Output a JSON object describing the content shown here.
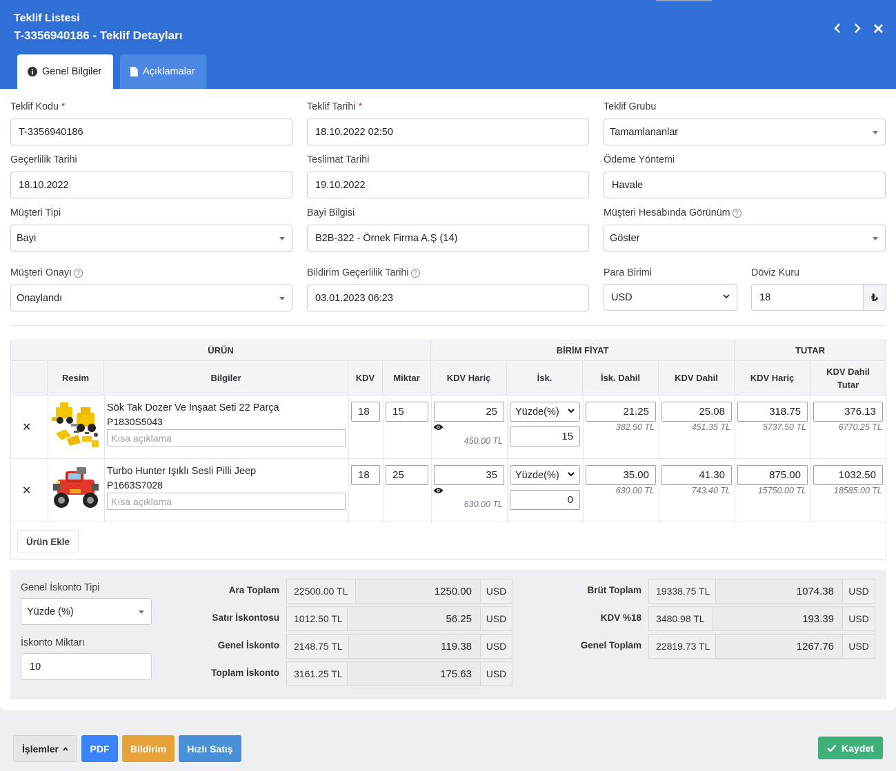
{
  "header": {
    "title_top": "Teklif Listesi",
    "title_main": "T-3356940186 - Teklif Detayları",
    "prev_icon": "chevron-left-icon",
    "next_icon": "chevron-right-icon",
    "close_icon": "close-icon"
  },
  "tabs": [
    {
      "label": "Genel Bilgiler",
      "icon": "info-circle-icon",
      "active": true
    },
    {
      "label": "Açıklamalar",
      "icon": "file-icon",
      "active": false
    }
  ],
  "form": {
    "teklif_kodu": {
      "label": "Teklif Kodu",
      "required": "*",
      "value": "T-3356940186"
    },
    "teklif_tarihi": {
      "label": "Teklif Tarihi",
      "required": "*",
      "value": "18.10.2022 02:50"
    },
    "teklif_grubu": {
      "label": "Teklif Grubu",
      "value": "Tamamlananlar"
    },
    "gecerlilik_tarihi": {
      "label": "Geçerlilik Tarihi",
      "value": "18.10.2022"
    },
    "teslimat_tarihi": {
      "label": "Teslimat Tarihi",
      "value": "19.10.2022"
    },
    "odeme_yontemi": {
      "label": "Ödeme Yöntemi",
      "value": "Havale"
    },
    "musteri_tipi": {
      "label": "Müşteri Tipi",
      "value": "Bayi"
    },
    "bayi_bilgisi": {
      "label": "Bayi Bilgisi",
      "value": "B2B-322 - Örnek Firma A.Ş (14)"
    },
    "musteri_hesabi_gorunum": {
      "label": "Müşteri Hesabında Görünüm",
      "value": "Göster"
    },
    "musteri_onayi": {
      "label": "Müşteri Onayı",
      "value": "Onaylandı"
    },
    "bildirim_gecerlilik": {
      "label": "Bildirim Geçerlilik Tarihi",
      "value": "03.01.2023 06:23"
    },
    "para_birimi": {
      "label": "Para Birimi",
      "value": "USD"
    },
    "doviz_kuru": {
      "label": "Döviz Kuru",
      "value": "18",
      "addon": "₺"
    },
    "help_glyph": "?"
  },
  "table": {
    "group_headers": {
      "urun": "ÜRÜN",
      "birim_fiyat": "BİRİM FİYAT",
      "tutar": "TUTAR"
    },
    "columns": {
      "resim": "Resim",
      "bilgiler": "Bilgiler",
      "kdv": "KDV",
      "miktar": "Miktar",
      "kdv_haric": "KDV Hariç",
      "isk": "İsk.",
      "isk_dahil": "İsk. Dahil",
      "kdv_dahil": "KDV Dahil",
      "tutar_kdv_haric": "KDV Hariç",
      "kdv_dahil_tutar_1": "KDV Dahil",
      "kdv_dahil_tutar_2": "Tutar"
    },
    "remove_glyph": "✕",
    "eye_glyph": "👁",
    "short_desc_placeholder": "Kısa açıklama",
    "rows": [
      {
        "name": "Sök Tak Dozer Ve İnşaat Seti 22 Parça",
        "code": "P1830S5043",
        "kdv": "18",
        "miktar": "15",
        "kdv_haric": "25",
        "kdv_haric_sub": "450.00 TL",
        "isk_type": "Yüzde(%)",
        "isk_value": "15",
        "isk_dahil": "21.25",
        "isk_dahil_sub": "382.50 TL",
        "kdv_dahil": "25.08",
        "kdv_dahil_sub": "451.35 TL",
        "tutar_kdv_haric": "318.75",
        "tutar_kdv_haric_sub": "5737.50 TL",
        "tutar_kdv_dahil": "376.13",
        "tutar_kdv_dahil_sub": "6770.25 TL"
      },
      {
        "name": "Turbo Hunter Işıklı Sesli Pilli Jeep",
        "code": "P1663S7028",
        "kdv": "18",
        "miktar": "25",
        "kdv_haric": "35",
        "kdv_haric_sub": "630.00 TL",
        "isk_type": "Yüzde(%)",
        "isk_value": "0",
        "isk_dahil": "35.00",
        "isk_dahil_sub": "630.00 TL",
        "kdv_dahil": "41.30",
        "kdv_dahil_sub": "743.40 TL",
        "tutar_kdv_haric": "875.00",
        "tutar_kdv_haric_sub": "15750.00 TL",
        "tutar_kdv_dahil": "1032.50",
        "tutar_kdv_dahil_sub": "18585.00 TL"
      }
    ],
    "add_product": "Ürün Ekle"
  },
  "totals": {
    "iskonto_tipi_label": "Genel İskonto Tipi",
    "iskonto_tipi_value": "Yüzde (%)",
    "iskonto_miktari_label": "İskonto Miktarı",
    "iskonto_miktari_value": "10",
    "left": [
      {
        "label": "Ara Toplam",
        "tl": "22500.00 TL",
        "value": "1250.00",
        "cur": "USD"
      },
      {
        "label": "Satır İskontosu",
        "tl": "1012.50 TL",
        "value": "56.25",
        "cur": "USD"
      },
      {
        "label": "Genel İskonto",
        "tl": "2148.75 TL",
        "value": "119.38",
        "cur": "USD"
      },
      {
        "label": "Toplam İskonto",
        "tl": "3161.25 TL",
        "value": "175.63",
        "cur": "USD"
      }
    ],
    "right": [
      {
        "label": "Brüt Toplam",
        "tl": "19338.75 TL",
        "value": "1074.38",
        "cur": "USD"
      },
      {
        "label": "KDV %18",
        "tl": "3480.98 TL",
        "value": "193.39",
        "cur": "USD"
      },
      {
        "label": "Genel Toplam",
        "tl": "22819.73 TL",
        "value": "1267.76",
        "cur": "USD"
      }
    ]
  },
  "footer": {
    "islemler": "İşlemler",
    "pdf": "PDF",
    "bildirim": "Bildirim",
    "hizli_satis": "Hızlı Satış",
    "kaydet": "Kaydet"
  },
  "colors": {
    "header_blue": "#2f6fd6",
    "pdf_blue": "#3b82f6",
    "bildirim_orange": "#e8a23a",
    "hizli_satis_blue": "#4a90d9",
    "kaydet_green": "#3fb07a"
  }
}
